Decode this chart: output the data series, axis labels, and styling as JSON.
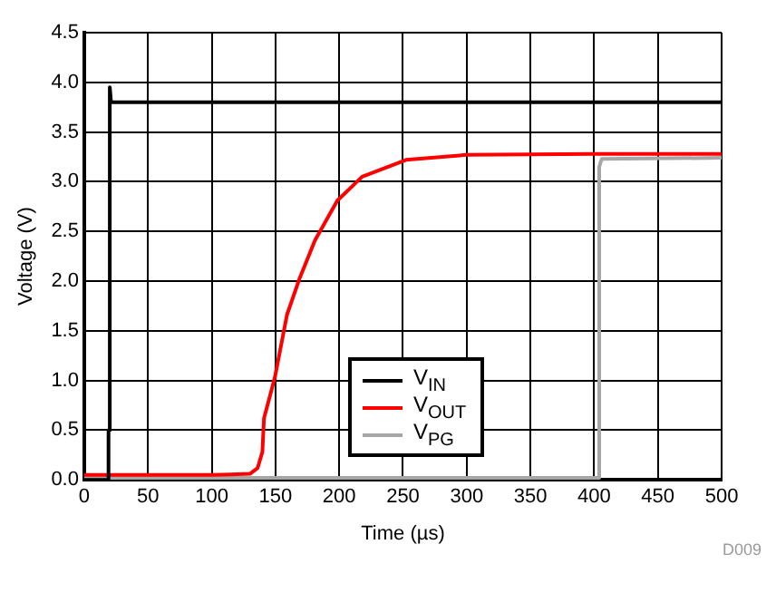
{
  "chart_data": {
    "type": "line",
    "xlabel": "Time (µs)",
    "ylabel": "Voltage (V)",
    "xlim": [
      0,
      500
    ],
    "xticks": [
      0,
      50,
      100,
      150,
      200,
      250,
      300,
      350,
      400,
      450,
      500
    ],
    "ylim": [
      0,
      4.5
    ],
    "yticks": [
      {
        "value": 0,
        "label": "0.0"
      },
      {
        "value": 0.5,
        "label": "0.5"
      },
      {
        "value": 1,
        "label": "1.0"
      },
      {
        "value": 1.5,
        "label": "1.5"
      },
      {
        "value": 2,
        "label": "2.0"
      },
      {
        "value": 2.5,
        "label": "2.5"
      },
      {
        "value": 3,
        "label": "3.0"
      },
      {
        "value": 3.5,
        "label": "3.5"
      },
      {
        "value": 4,
        "label": "4.0"
      },
      {
        "value": 4.5,
        "label": "4.5"
      }
    ],
    "grid": true,
    "legend": "bottom",
    "marker": "none",
    "line_style": "solid",
    "series": [
      {
        "name": "V$_{IN}$",
        "color": "#000000",
        "x": [
          0,
          19,
          19,
          20,
          20,
          21,
          500
        ],
        "values": [
          0,
          0,
          0.5,
          0.5,
          3.95,
          3.8,
          3.8
        ]
      },
      {
        "name": "V$_{OUT}$",
        "color": "#ff0000",
        "x": [
          0,
          50,
          100,
          130,
          136,
          139.7,
          141,
          149.5,
          159,
          169,
          181,
          198.5,
          218,
          252.5,
          300,
          400,
          500
        ],
        "values": [
          0.05,
          0.05,
          0.05,
          0.06,
          0.12,
          0.28,
          0.62,
          1.03,
          1.66,
          2.03,
          2.41,
          2.81,
          3.05,
          3.22,
          3.27,
          3.28,
          3.28
        ]
      },
      {
        "name": "V$_{PG}$",
        "color": "#a6a6a6",
        "x": [
          0,
          200,
          404,
          404,
          406,
          500
        ],
        "values": [
          0.02,
          0.02,
          0.02,
          3.15,
          3.23,
          3.24
        ]
      }
    ],
    "annotations": [
      "D009"
    ]
  }
}
